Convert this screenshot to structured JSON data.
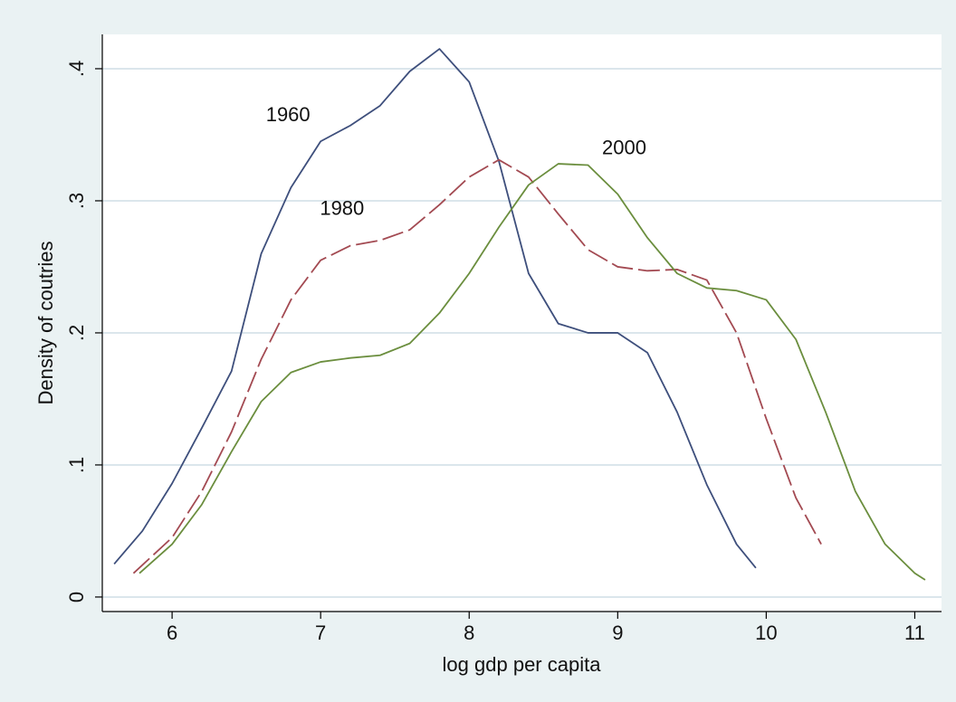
{
  "chart_data": {
    "type": "line",
    "x_label": "log gdp per capita",
    "y_label": "Density of coutries",
    "xlim": [
      5.53,
      11.18
    ],
    "ylim": [
      -0.011,
      0.426
    ],
    "xticks": [
      6,
      7,
      8,
      9,
      10,
      11
    ],
    "yticks": [
      0,
      {
        "value": 0.1,
        "label": ".1"
      },
      {
        "value": 0.2,
        "label": ".2"
      },
      {
        "value": 0.3,
        "label": ".3"
      },
      {
        "value": 0.4,
        "label": ".4"
      }
    ],
    "grid": true,
    "series": [
      {
        "name": "1960",
        "color": "#3e4f7c",
        "line_style": "solid",
        "x": [
          5.61,
          5.8,
          6.0,
          6.2,
          6.4,
          6.6,
          6.8,
          7.0,
          7.2,
          7.4,
          7.6,
          7.8,
          8.0,
          8.2,
          8.4,
          8.6,
          8.8,
          9.0,
          9.2,
          9.4,
          9.6,
          9.8,
          9.93
        ],
        "values": [
          0.025,
          0.05,
          0.086,
          0.128,
          0.171,
          0.26,
          0.31,
          0.345,
          0.357,
          0.372,
          0.398,
          0.415,
          0.39,
          0.33,
          0.245,
          0.207,
          0.2,
          0.2,
          0.185,
          0.14,
          0.085,
          0.04,
          0.022
        ]
      },
      {
        "name": "1980",
        "color": "#a34a52",
        "line_style": "dashed",
        "x": [
          5.74,
          6.0,
          6.2,
          6.4,
          6.6,
          6.8,
          7.0,
          7.2,
          7.4,
          7.6,
          7.8,
          8.0,
          8.2,
          8.4,
          8.6,
          8.8,
          9.0,
          9.2,
          9.4,
          9.6,
          9.8,
          10.0,
          10.2,
          10.37
        ],
        "values": [
          0.018,
          0.045,
          0.08,
          0.125,
          0.18,
          0.225,
          0.255,
          0.266,
          0.27,
          0.278,
          0.297,
          0.318,
          0.331,
          0.318,
          0.29,
          0.263,
          0.25,
          0.247,
          0.248,
          0.24,
          0.2,
          0.135,
          0.075,
          0.04
        ]
      },
      {
        "name": "2000",
        "color": "#6b8e3e",
        "line_style": "solid",
        "x": [
          5.78,
          6.0,
          6.2,
          6.4,
          6.6,
          6.8,
          7.0,
          7.2,
          7.4,
          7.6,
          7.8,
          8.0,
          8.2,
          8.4,
          8.6,
          8.8,
          9.0,
          9.2,
          9.4,
          9.6,
          9.8,
          10.0,
          10.2,
          10.4,
          10.6,
          10.8,
          11.0,
          11.07
        ],
        "values": [
          0.018,
          0.04,
          0.07,
          0.11,
          0.148,
          0.17,
          0.178,
          0.181,
          0.183,
          0.192,
          0.215,
          0.245,
          0.28,
          0.312,
          0.328,
          0.327,
          0.305,
          0.272,
          0.245,
          0.234,
          0.232,
          0.225,
          0.195,
          0.14,
          0.08,
          0.04,
          0.018,
          0.013
        ]
      }
    ]
  }
}
